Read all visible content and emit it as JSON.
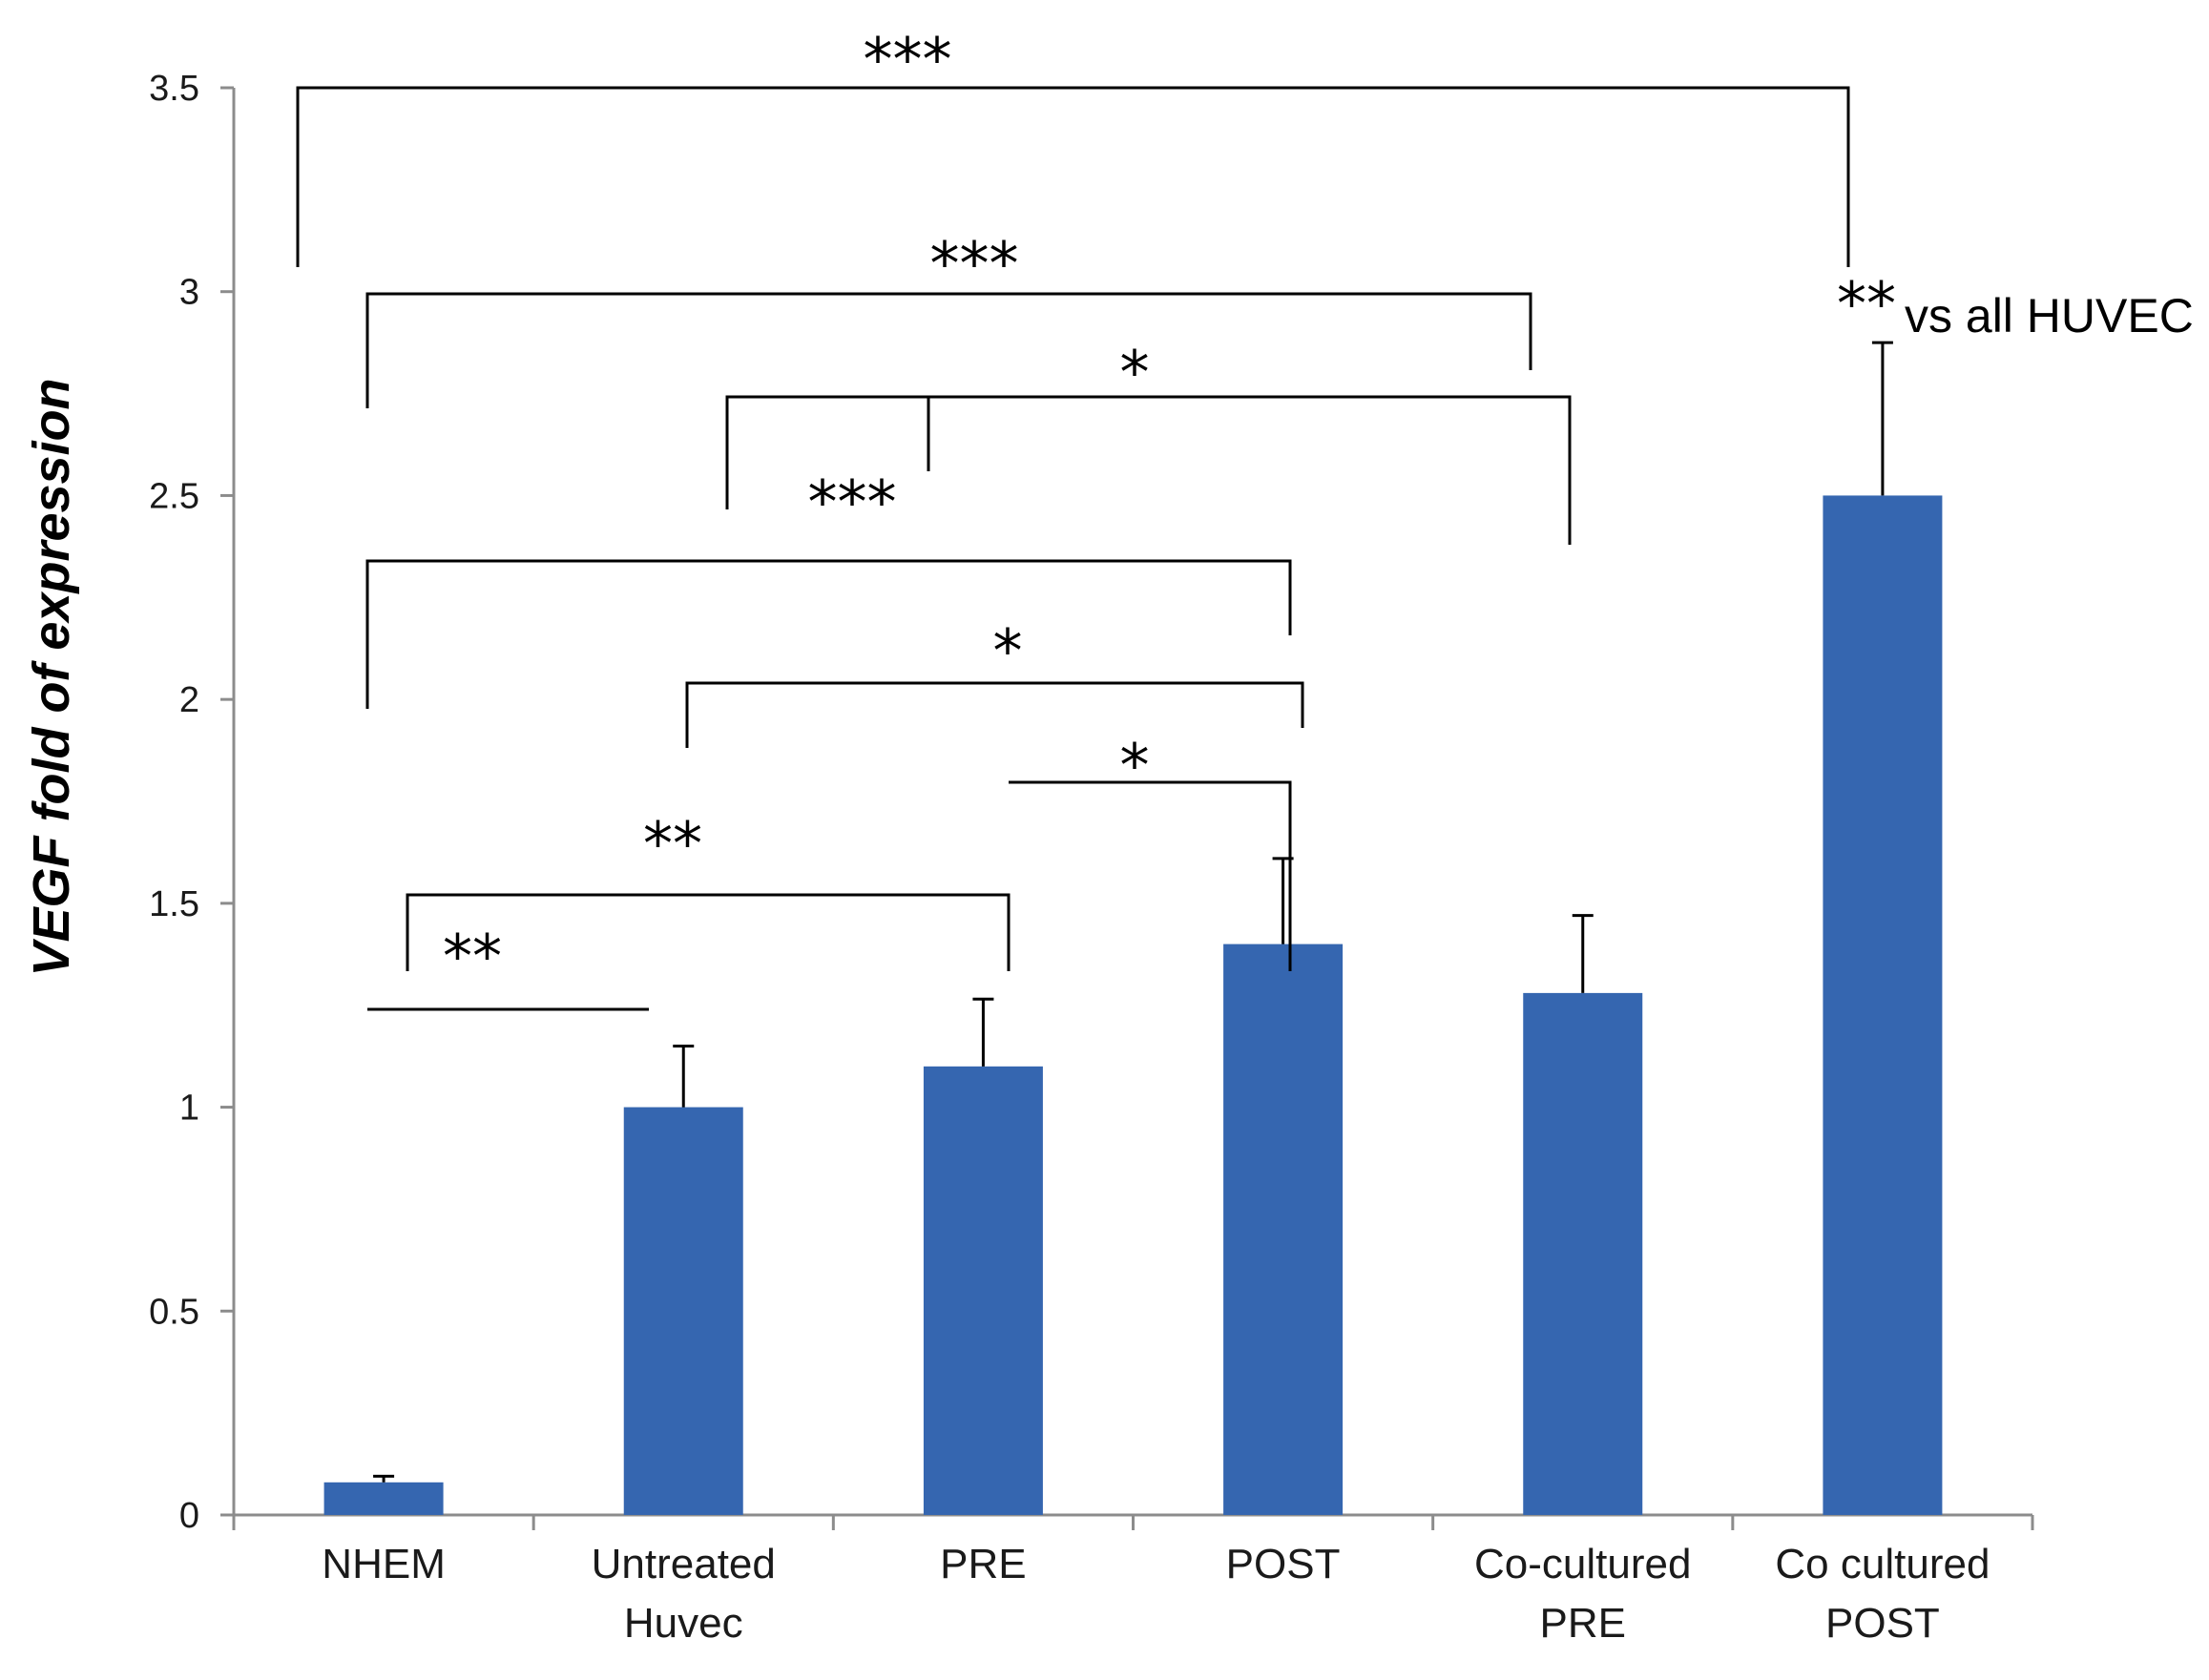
{
  "chart_data": {
    "type": "bar",
    "title": "",
    "xlabel": "",
    "ylabel": "VEGF fold of expression",
    "ylim": [
      0,
      3.5
    ],
    "yticks": [
      "0",
      "0.5",
      "1",
      "1.5",
      "2",
      "2.5",
      "3",
      "3.5"
    ],
    "grid": false,
    "bar_color": "#3566b0",
    "categories": [
      [
        "NHEM"
      ],
      [
        "Untreated",
        "Huvec"
      ],
      [
        "PRE"
      ],
      [
        "POST"
      ],
      [
        "Co-cultured",
        "PRE"
      ],
      [
        "Co cultured",
        "POST"
      ]
    ],
    "values": [
      0.08,
      1.0,
      1.1,
      1.4,
      1.28,
      2.5
    ],
    "errors": [
      0.015,
      0.15,
      0.165,
      0.21,
      0.19,
      0.375
    ],
    "significance": [
      {
        "from": 0,
        "to": 5,
        "label": "***",
        "level": 3.5
      },
      {
        "from": 0,
        "to": 4,
        "label": "***",
        "level": 2.99
      },
      {
        "from": 1,
        "to": 4,
        "label": "*",
        "level": 2.73
      },
      {
        "from": 0,
        "to": 3,
        "label": "***",
        "level": 2.34
      },
      {
        "from": 1,
        "to": 3,
        "label": "*",
        "level": 2.04
      },
      {
        "from": 2,
        "to": 3,
        "label": "*",
        "level": 1.79
      },
      {
        "from": 0,
        "to": 2,
        "label": "**",
        "level": 1.5
      },
      {
        "from": 0,
        "to": 1,
        "label": "**",
        "level": 1.24
      }
    ],
    "annotation": {
      "stars": "**",
      "text": "vs all HUVEC",
      "category": 5
    }
  }
}
